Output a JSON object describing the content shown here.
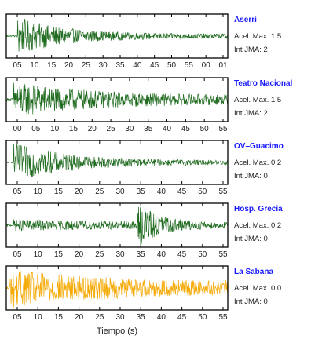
{
  "chart_data": {
    "type": "line",
    "xlabel": "Tiempo (s)",
    "colors": {
      "trace": "#1f6b1f",
      "trace_highlight": "#f5a800",
      "station": "#1a1aff"
    },
    "panels": [
      {
        "station": "Aserri",
        "acel": "Acel. Max. 1.5",
        "jma": "Int JMA: 2",
        "ticks": [
          "05",
          "10",
          "15",
          "20",
          "25",
          "30",
          "35",
          "40",
          "45",
          "50",
          "55",
          "00",
          "01"
        ],
        "color": "#1f6b1f",
        "onset_s": 3,
        "decay_s": 12,
        "peak": 1.0,
        "tail": 0.12,
        "burst_s": null,
        "burst_amp": 0
      },
      {
        "station": "Teatro Nacional",
        "acel": "Acel. Max. 1.5",
        "jma": "Int JMA: 2",
        "ticks": [
          "00",
          "05",
          "10",
          "15",
          "20",
          "25",
          "30",
          "35",
          "40",
          "45",
          "50",
          "55"
        ],
        "color": "#1f6b1f",
        "onset_s": 2,
        "decay_s": 20,
        "peak": 0.95,
        "tail": 0.22,
        "burst_s": null,
        "burst_amp": 0
      },
      {
        "station": "OV–Guacimo",
        "acel": "Acel. Max. 0.2",
        "jma": "Int JMA: 0",
        "ticks": [
          "05",
          "10",
          "15",
          "20",
          "25",
          "30",
          "35",
          "40",
          "45",
          "50",
          "55"
        ],
        "color": "#1f6b1f",
        "onset_s": 2,
        "decay_s": 15,
        "peak": 1.0,
        "tail": 0.1,
        "burst_s": null,
        "burst_amp": 0
      },
      {
        "station": "Hosp. Grecia",
        "acel": "Acel. Max. 0.2",
        "jma": "Int JMA: 0",
        "ticks": [
          "05",
          "10",
          "15",
          "20",
          "25",
          "30",
          "35",
          "40",
          "45",
          "50",
          "55"
        ],
        "color": "#1f6b1f",
        "onset_s": 2,
        "decay_s": 30,
        "peak": 0.3,
        "tail": 0.15,
        "burst_s": 35,
        "burst_amp": 1.0
      },
      {
        "station": "La Sabana",
        "acel": "Acel. Max. 0.0",
        "jma": "Int JMA: 0",
        "ticks": [
          "05",
          "10",
          "15",
          "20",
          "25",
          "30",
          "35",
          "40",
          "45",
          "50",
          "55"
        ],
        "color": "#f5a800",
        "onset_s": 1,
        "decay_s": 25,
        "peak": 1.0,
        "tail": 0.3,
        "burst_s": null,
        "burst_amp": 0
      }
    ]
  }
}
